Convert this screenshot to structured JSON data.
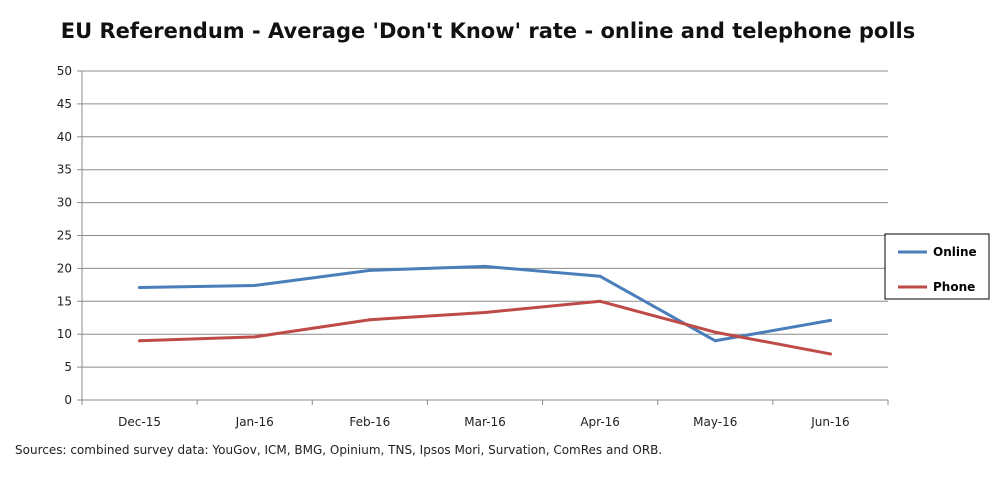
{
  "chart_data": {
    "type": "line",
    "title": "EU Referendum - Average 'Don't Know' rate - online and telephone polls",
    "categories": [
      "Dec-15",
      "Jan-16",
      "Feb-16",
      "Mar-16",
      "Apr-16",
      "May-16",
      "Jun-16"
    ],
    "ylim": [
      0,
      50
    ],
    "yticks": [
      0,
      5,
      10,
      15,
      20,
      25,
      30,
      35,
      40,
      45,
      50
    ],
    "grid": true,
    "legend_position": "right",
    "series": [
      {
        "name": "Online",
        "color": "#4a7ebb",
        "values": [
          17.1,
          17.4,
          19.7,
          20.3,
          18.8,
          9.0,
          12.1
        ]
      },
      {
        "name": "Phone",
        "color": "#be4b48",
        "values": [
          9.0,
          9.6,
          12.2,
          13.3,
          15.0,
          10.3,
          7.0
        ]
      }
    ]
  },
  "footer": {
    "source": "Sources: combined survey data: YouGov, ICM, BMG, Opinium, TNS, Ipsos Mori, Survation, ComRes and ORB."
  }
}
